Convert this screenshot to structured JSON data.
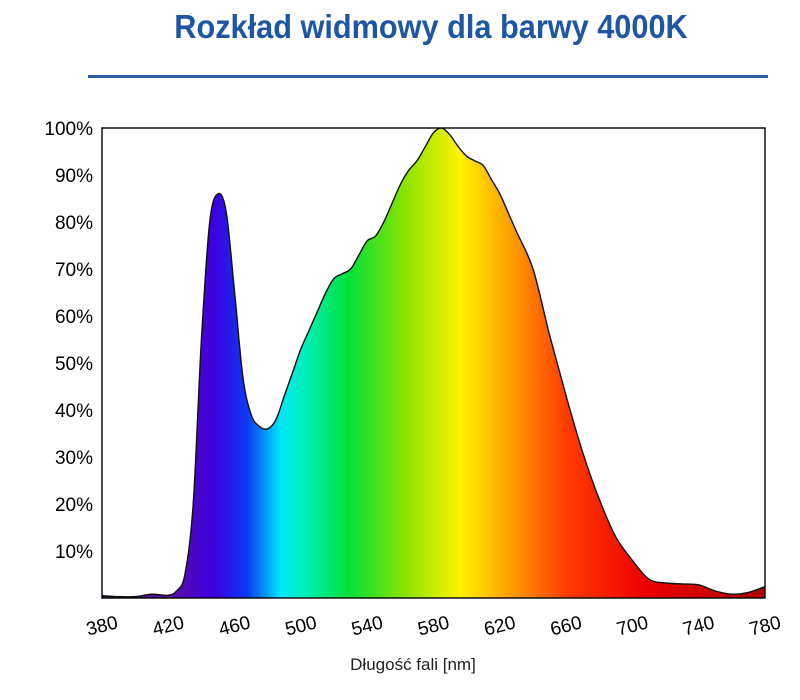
{
  "chart_data": {
    "type": "area",
    "title": "Rozkład widmowy dla barwy 4000K",
    "xlabel": "Długość fali [nm]",
    "ylabel": "",
    "xlim": [
      380,
      780
    ],
    "ylim": [
      0,
      100
    ],
    "x_ticks": [
      "380",
      "420",
      "460",
      "500",
      "540",
      "580",
      "620",
      "660",
      "700",
      "740",
      "780"
    ],
    "y_ticks": [
      "10%",
      "20%",
      "30%",
      "40%",
      "50%",
      "60%",
      "70%",
      "80%",
      "90%",
      "100%"
    ],
    "grid": false,
    "fill": "visible-spectrum-gradient",
    "x": [
      380,
      390,
      400,
      410,
      420,
      425,
      430,
      435,
      440,
      445,
      450,
      455,
      460,
      465,
      470,
      475,
      480,
      485,
      490,
      495,
      500,
      505,
      510,
      515,
      520,
      525,
      530,
      535,
      540,
      545,
      550,
      555,
      560,
      565,
      570,
      575,
      580,
      585,
      590,
      595,
      600,
      605,
      610,
      615,
      620,
      625,
      630,
      640,
      650,
      660,
      670,
      680,
      690,
      700,
      710,
      720,
      730,
      740,
      750,
      760,
      770,
      780
    ],
    "values": [
      0.5,
      0.3,
      0.3,
      0.8,
      0.6,
      1.5,
      5,
      20,
      55,
      80,
      86,
      82,
      65,
      47,
      39,
      36.5,
      36,
      38,
      43,
      48,
      53,
      57,
      61,
      65,
      68,
      69,
      70,
      73,
      76,
      77,
      80,
      84,
      88,
      91,
      93,
      96,
      99,
      100,
      98.5,
      96,
      94,
      93,
      92,
      89,
      86,
      82,
      78,
      70,
      56,
      43,
      31,
      21,
      13,
      8,
      4,
      3.2,
      3,
      2.8,
      1.5,
      0.8,
      1.2,
      2.4
    ]
  }
}
